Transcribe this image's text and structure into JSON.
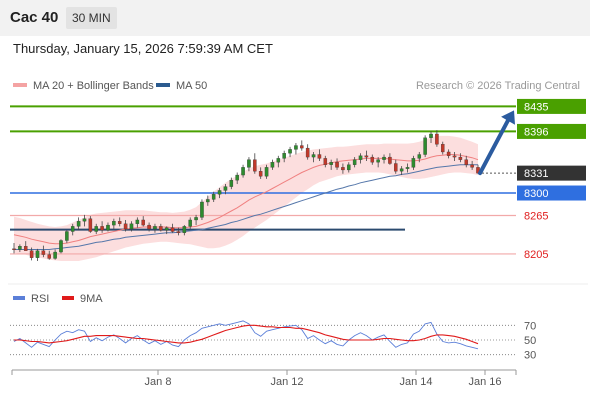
{
  "header": {
    "symbol": "Cac 40",
    "timeframe": "30 MIN"
  },
  "datetime": "Thursday, January 15, 2026 7:59:39 AM CET",
  "legend": {
    "bollinger": {
      "label": "MA 20 + Bollinger Bands",
      "color": "#f4a3a3"
    },
    "ma50": {
      "label": "MA 50",
      "color": "#2b5b8f"
    },
    "credit": "Research © 2026 Trading Central"
  },
  "rsi_legend": {
    "rsi": {
      "label": "RSI",
      "color": "#5b7fd8"
    },
    "ma9": {
      "label": "9MA",
      "color": "#e01b1b"
    }
  },
  "chart_data": {
    "type": "candlestick",
    "x_ticks": [
      "Jan 8",
      "Jan 12",
      "Jan 14",
      "Jan 16"
    ],
    "ylim": [
      8180,
      8445
    ],
    "levels": [
      {
        "value": 8435,
        "label": "8435",
        "style": "resistance",
        "color": "#4aa000"
      },
      {
        "value": 8396,
        "label": "8396",
        "style": "resistance",
        "color": "#4aa000"
      },
      {
        "value": 8331,
        "label": "8331",
        "style": "last",
        "color": "#333333"
      },
      {
        "value": 8300,
        "label": "8300",
        "style": "pivot",
        "color": "#2f6fe0"
      },
      {
        "value": 8265,
        "label": "8265",
        "style": "support",
        "color": "#e02020"
      },
      {
        "value": 8205,
        "label": "8205",
        "style": "support",
        "color": "#e02020"
      }
    ],
    "ohlc": [
      [
        8213,
        8222,
        8206,
        8212
      ],
      [
        8212,
        8220,
        8208,
        8217
      ],
      [
        8217,
        8225,
        8212,
        8210
      ],
      [
        8210,
        8215,
        8195,
        8199
      ],
      [
        8199,
        8213,
        8194,
        8210
      ],
      [
        8210,
        8218,
        8200,
        8204
      ],
      [
        8204,
        8210,
        8196,
        8198
      ],
      [
        8198,
        8212,
        8196,
        8208
      ],
      [
        8208,
        8228,
        8206,
        8226
      ],
      [
        8226,
        8242,
        8222,
        8240
      ],
      [
        8240,
        8252,
        8234,
        8248
      ],
      [
        8248,
        8262,
        8242,
        8256
      ],
      [
        8256,
        8266,
        8248,
        8260
      ],
      [
        8260,
        8264,
        8238,
        8240
      ],
      [
        8240,
        8252,
        8236,
        8248
      ],
      [
        8248,
        8256,
        8238,
        8242
      ],
      [
        8242,
        8254,
        8240,
        8250
      ],
      [
        8250,
        8260,
        8244,
        8256
      ],
      [
        8256,
        8262,
        8248,
        8252
      ],
      [
        8252,
        8258,
        8240,
        8244
      ],
      [
        8244,
        8256,
        8240,
        8252
      ],
      [
        8252,
        8262,
        8246,
        8258
      ],
      [
        8258,
        8264,
        8248,
        8250
      ],
      [
        8250,
        8254,
        8240,
        8244
      ],
      [
        8244,
        8252,
        8238,
        8248
      ],
      [
        8248,
        8252,
        8240,
        8242
      ],
      [
        8242,
        8248,
        8236,
        8246
      ],
      [
        8246,
        8252,
        8238,
        8240
      ],
      [
        8240,
        8246,
        8234,
        8238
      ],
      [
        8238,
        8250,
        8234,
        8248
      ],
      [
        8248,
        8262,
        8244,
        8258
      ],
      [
        8258,
        8266,
        8250,
        8262
      ],
      [
        8262,
        8290,
        8258,
        8286
      ],
      [
        8286,
        8296,
        8280,
        8290
      ],
      [
        8290,
        8302,
        8286,
        8298
      ],
      [
        8298,
        8308,
        8292,
        8304
      ],
      [
        8304,
        8314,
        8298,
        8310
      ],
      [
        8310,
        8324,
        8306,
        8320
      ],
      [
        8320,
        8332,
        8314,
        8328
      ],
      [
        8328,
        8344,
        8324,
        8340
      ],
      [
        8340,
        8356,
        8334,
        8352
      ],
      [
        8352,
        8362,
        8330,
        8334
      ],
      [
        8334,
        8340,
        8322,
        8326
      ],
      [
        8326,
        8344,
        8322,
        8340
      ],
      [
        8340,
        8352,
        8336,
        8348
      ],
      [
        8348,
        8358,
        8340,
        8354
      ],
      [
        8354,
        8366,
        8348,
        8362
      ],
      [
        8362,
        8372,
        8356,
        8368
      ],
      [
        8368,
        8378,
        8360,
        8374
      ],
      [
        8374,
        8382,
        8366,
        8370
      ],
      [
        8370,
        8376,
        8352,
        8356
      ],
      [
        8356,
        8364,
        8348,
        8360
      ],
      [
        8360,
        8368,
        8350,
        8354
      ],
      [
        8354,
        8358,
        8340,
        8344
      ],
      [
        8344,
        8352,
        8336,
        8348
      ],
      [
        8348,
        8354,
        8336,
        8340
      ],
      [
        8340,
        8346,
        8330,
        8336
      ],
      [
        8336,
        8348,
        8332,
        8344
      ],
      [
        8344,
        8356,
        8340,
        8352
      ],
      [
        8352,
        8362,
        8346,
        8358
      ],
      [
        8358,
        8366,
        8350,
        8356
      ],
      [
        8356,
        8360,
        8344,
        8348
      ],
      [
        8348,
        8356,
        8340,
        8352
      ],
      [
        8352,
        8360,
        8346,
        8356
      ],
      [
        8356,
        8362,
        8344,
        8346
      ],
      [
        8346,
        8352,
        8330,
        8334
      ],
      [
        8334,
        8342,
        8328,
        8338
      ],
      [
        8338,
        8346,
        8332,
        8340
      ],
      [
        8340,
        8358,
        8336,
        8354
      ],
      [
        8354,
        8364,
        8348,
        8360
      ],
      [
        8360,
        8390,
        8356,
        8386
      ],
      [
        8386,
        8396,
        8378,
        8392
      ],
      [
        8392,
        8398,
        8372,
        8376
      ],
      [
        8376,
        8380,
        8360,
        8364
      ],
      [
        8364,
        8368,
        8354,
        8358
      ],
      [
        8358,
        8364,
        8350,
        8356
      ],
      [
        8356,
        8362,
        8348,
        8352
      ],
      [
        8352,
        8358,
        8340,
        8344
      ],
      [
        8344,
        8350,
        8336,
        8340
      ],
      [
        8340,
        8344,
        8330,
        8331
      ]
    ],
    "ma20": [
      8235,
      8233,
      8231,
      8228,
      8226,
      8224,
      8222,
      8221,
      8221,
      8222,
      8224,
      8226,
      8229,
      8232,
      8234,
      8236,
      8238,
      8240,
      8242,
      8244,
      8245,
      8246,
      8247,
      8247,
      8247,
      8247,
      8247,
      8246,
      8246,
      8246,
      8247,
      8248,
      8251,
      8254,
      8258,
      8262,
      8267,
      8272,
      8277,
      8283,
      8289,
      8294,
      8298,
      8302,
      8307,
      8312,
      8317,
      8322,
      8327,
      8332,
      8336,
      8340,
      8343,
      8345,
      8347,
      8349,
      8350,
      8351,
      8352,
      8353,
      8354,
      8354,
      8354,
      8354,
      8353,
      8352,
      8351,
      8350,
      8350,
      8351,
      8353,
      8356,
      8358,
      8359,
      8360,
      8360,
      8359,
      8357,
      8355,
      8352
    ],
    "ma50": [
      8212,
      8212,
      8212,
      8212,
      8212,
      8212,
      8212,
      8213,
      8214,
      8215,
      8216,
      8217,
      8219,
      8221,
      8223,
      8224,
      8226,
      8228,
      8229,
      8231,
      8232,
      8233,
      8234,
      8235,
      8236,
      8237,
      8238,
      8238,
      8239,
      8240,
      8241,
      8242,
      8243,
      8245,
      8247,
      8249,
      8251,
      8254,
      8256,
      8259,
      8262,
      8265,
      8267,
      8270,
      8273,
      8276,
      8279,
      8282,
      8285,
      8288,
      8291,
      8294,
      8297,
      8300,
      8303,
      8306,
      8308,
      8311,
      8313,
      8316,
      8318,
      8320,
      8322,
      8324,
      8326,
      8327,
      8329,
      8330,
      8332,
      8334,
      8336,
      8338,
      8340,
      8341,
      8342,
      8343,
      8344,
      8344,
      8344,
      8344
    ],
    "band_width": [
      28,
      28,
      27,
      27,
      26,
      26,
      26,
      26,
      27,
      28,
      30,
      32,
      33,
      34,
      34,
      33,
      32,
      31,
      30,
      29,
      28,
      27,
      26,
      25,
      24,
      23,
      23,
      23,
      24,
      25,
      27,
      30,
      35,
      40,
      44,
      47,
      49,
      50,
      50,
      50,
      49,
      48,
      46,
      44,
      42,
      40,
      38,
      36,
      34,
      32,
      30,
      28,
      26,
      25,
      24,
      23,
      22,
      22,
      22,
      22,
      22,
      22,
      22,
      23,
      24,
      25,
      26,
      27,
      28,
      29,
      30,
      31,
      31,
      30,
      29,
      28,
      27,
      26,
      25,
      24
    ],
    "forecast_target": 8435,
    "rsi": {
      "ylim": [
        20,
        80
      ],
      "ticks": [
        70,
        50,
        30
      ],
      "rsi_values": [
        48,
        52,
        46,
        40,
        47,
        44,
        41,
        50,
        58,
        62,
        60,
        64,
        62,
        48,
        53,
        49,
        54,
        57,
        52,
        46,
        52,
        56,
        50,
        45,
        49,
        44,
        48,
        43,
        41,
        50,
        56,
        60,
        66,
        68,
        70,
        72,
        70,
        72,
        74,
        76,
        72,
        60,
        55,
        62,
        64,
        66,
        68,
        69,
        70,
        64,
        52,
        56,
        50,
        45,
        49,
        44,
        42,
        50,
        56,
        60,
        56,
        50,
        54,
        57,
        48,
        40,
        44,
        46,
        58,
        62,
        72,
        74,
        58,
        48,
        46,
        47,
        45,
        42,
        40,
        38
      ],
      "ma9_values": [
        50,
        50,
        49,
        48,
        48,
        47,
        46,
        47,
        48,
        49,
        51,
        53,
        55,
        55,
        56,
        56,
        56,
        56,
        55,
        54,
        53,
        52,
        52,
        51,
        50,
        49,
        48,
        47,
        46,
        46,
        47,
        49,
        51,
        54,
        57,
        60,
        63,
        65,
        67,
        69,
        70,
        70,
        69,
        68,
        68,
        67,
        67,
        67,
        66,
        66,
        64,
        62,
        60,
        57,
        55,
        53,
        51,
        50,
        50,
        50,
        50,
        50,
        51,
        52,
        52,
        51,
        50,
        49,
        49,
        50,
        52,
        55,
        57,
        57,
        56,
        55,
        53,
        51,
        48,
        45
      ]
    }
  }
}
